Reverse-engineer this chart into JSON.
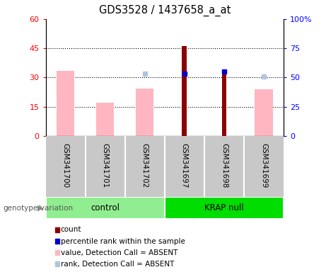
{
  "title": "GDS3528 / 1437658_a_at",
  "samples": [
    "GSM341700",
    "GSM341701",
    "GSM341702",
    "GSM341697",
    "GSM341698",
    "GSM341699"
  ],
  "value_absent": [
    33.5,
    17.0,
    24.5,
    null,
    null,
    24.0
  ],
  "rank_absent": [
    null,
    null,
    32.0,
    null,
    null,
    30.5
  ],
  "count": [
    null,
    null,
    null,
    46.0,
    32.0,
    null
  ],
  "percentile": [
    null,
    null,
    null,
    53.0,
    55.0,
    null
  ],
  "left_ylim": [
    0,
    60
  ],
  "right_ylim": [
    0,
    100
  ],
  "left_yticks": [
    0,
    15,
    30,
    45,
    60
  ],
  "right_yticks": [
    0,
    25,
    50,
    75,
    100
  ],
  "left_ytick_labels": [
    "0",
    "15",
    "30",
    "45",
    "60"
  ],
  "right_ytick_labels": [
    "0",
    "25",
    "50",
    "75",
    "100%"
  ],
  "count_color": "#8B0000",
  "percentile_color": "#0000CD",
  "value_absent_color": "#FFB6C1",
  "rank_absent_color": "#B0C4DE",
  "group_control_color": "#90EE90",
  "group_krap_color": "#00DD00",
  "sample_bg_color": "#C8C8C8",
  "legend_items": [
    {
      "label": "count",
      "color": "#8B0000"
    },
    {
      "label": "percentile rank within the sample",
      "color": "#0000CD"
    },
    {
      "label": "value, Detection Call = ABSENT",
      "color": "#FFB6C1"
    },
    {
      "label": "rank, Detection Call = ABSENT",
      "color": "#B0C4DE"
    }
  ]
}
